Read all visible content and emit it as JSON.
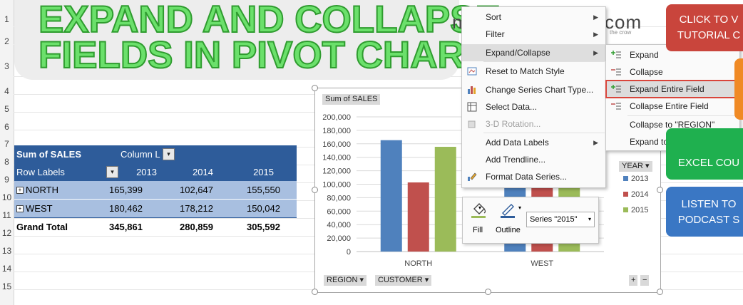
{
  "banner": {
    "line1": "EXPAND AND COLLAPSE",
    "line2": "FIELDS IN PIVOT CHART"
  },
  "logo": {
    "left_fragment": "n",
    "right_fragment": "com",
    "tagline": "the crow"
  },
  "row_numbers": [
    "1",
    "2",
    "3",
    "4",
    "5",
    "6",
    "7",
    "8",
    "9",
    "10",
    "11",
    "12",
    "13",
    "14",
    "15"
  ],
  "pivot": {
    "header_title": "Sum of SALES",
    "column_labels": "Column L",
    "row_labels": "Row Labels",
    "years": [
      "2013",
      "2014",
      "2015"
    ],
    "rows": [
      {
        "label": "NORTH",
        "values": [
          "165,399",
          "102,647",
          "155,550"
        ]
      },
      {
        "label": "WEST",
        "values": [
          "180,462",
          "178,212",
          "150,042"
        ]
      }
    ],
    "grand_total": {
      "label": "Grand Total",
      "values": [
        "345,861",
        "280,859",
        "305,592"
      ]
    }
  },
  "chart_data": {
    "type": "bar",
    "title": "Sum of SALES",
    "categories": [
      "NORTH",
      "WEST"
    ],
    "series": [
      {
        "name": "2013",
        "color": "#4f81bd",
        "values": [
          165399,
          180462
        ]
      },
      {
        "name": "2014",
        "color": "#c0504d",
        "values": [
          102647,
          178212
        ]
      },
      {
        "name": "2015",
        "color": "#9bbb59",
        "values": [
          155550,
          150042
        ]
      }
    ],
    "ylim": [
      0,
      200000
    ],
    "yticks": [
      "0",
      "20,000",
      "40,000",
      "60,000",
      "80,000",
      "100,000",
      "120,000",
      "140,000",
      "160,000",
      "180,000",
      "200,000"
    ],
    "legend_title": "YEAR",
    "legend_position": "right",
    "grid": true
  },
  "chart_fields": {
    "region": "REGION",
    "customer": "CUSTOMER",
    "plus": "+",
    "minus": "−"
  },
  "context_menu": {
    "items": [
      {
        "label": "Sort",
        "submenu": true,
        "icon": "",
        "state": "normal"
      },
      {
        "label": "Filter",
        "submenu": true,
        "icon": "",
        "state": "normal"
      },
      {
        "label": "Expand/Collapse",
        "submenu": true,
        "icon": "",
        "state": "active"
      },
      {
        "label": "Reset to Match Style",
        "submenu": false,
        "icon": "reset-style-icon",
        "state": "normal"
      },
      {
        "label": "Change Series Chart Type...",
        "submenu": false,
        "icon": "chart-type-icon",
        "state": "normal"
      },
      {
        "label": "Select Data...",
        "submenu": false,
        "icon": "select-data-icon",
        "state": "normal"
      },
      {
        "label": "3-D Rotation...",
        "submenu": false,
        "icon": "rotation-3d-icon",
        "state": "disabled"
      },
      {
        "label": "Add Data Labels",
        "submenu": true,
        "icon": "",
        "state": "normal"
      },
      {
        "label": "Add Trendline...",
        "submenu": false,
        "icon": "",
        "state": "normal"
      },
      {
        "label": "Format Data Series...",
        "submenu": false,
        "icon": "format-series-icon",
        "state": "normal"
      }
    ]
  },
  "submenu": {
    "items": [
      {
        "label": "Expand",
        "icon": "expand-icon",
        "state": "normal"
      },
      {
        "label": "Collapse",
        "icon": "collapse-icon",
        "state": "normal"
      },
      {
        "label": "Expand Entire Field",
        "icon": "expand-field-icon",
        "state": "active"
      },
      {
        "label": "Collapse Entire Field",
        "icon": "collapse-field-icon",
        "state": "normal"
      },
      {
        "label": "Collapse to \"REGION\"",
        "icon": "",
        "state": "normal"
      },
      {
        "label": "Expand to \"CUSTOMER\"",
        "icon": "",
        "state": "normal"
      }
    ]
  },
  "mini_toolbar": {
    "fill": "Fill",
    "outline": "Outline",
    "series_value": "Series \"2015\""
  },
  "side_buttons": [
    {
      "line1": "CLICK TO V",
      "line2": "TUTORIAL C",
      "color": "#c9453c"
    },
    {
      "line1": "",
      "line2": "",
      "color": "#f08a25"
    },
    {
      "line1": "",
      "line2": "EXCEL COU",
      "color": "#1fb04f"
    },
    {
      "line1": "LISTEN TO",
      "line2": "PODCAST S",
      "color": "#3a77c4"
    }
  ]
}
